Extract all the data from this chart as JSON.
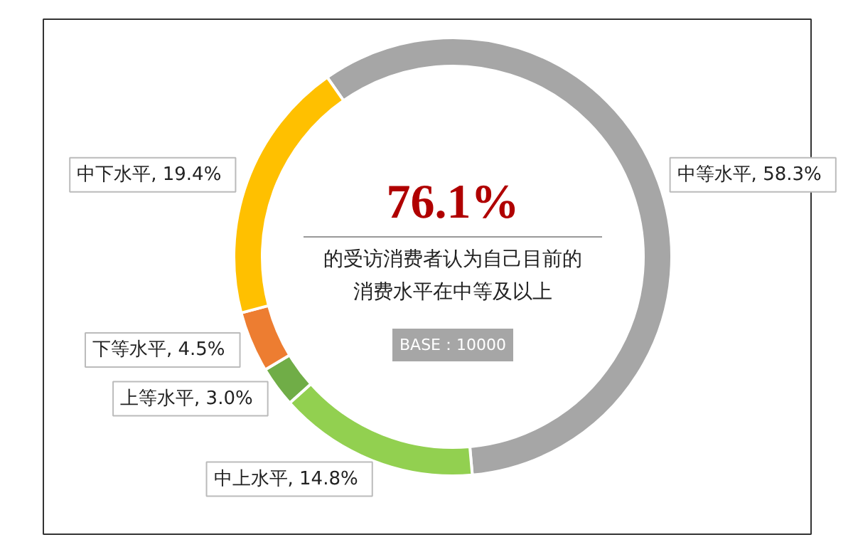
{
  "chart_data": {
    "type": "donut",
    "categories": [
      "中等水平",
      "中上水平",
      "上等水平",
      "下等水平",
      "中下水平"
    ],
    "values": [
      58.3,
      14.8,
      3.0,
      4.5,
      19.4
    ],
    "colors": [
      "#a6a6a6",
      "#92d050",
      "#70ad47",
      "#ed7d31",
      "#ffc000"
    ],
    "value_labels": [
      ", 58.3%",
      ", 14.8%",
      ", 3.0%",
      ", 4.5%",
      ", 19.4%"
    ],
    "annotations": [
      "76.1%",
      "的受访消费者认为自己目前的",
      "消费水平在中等及以上",
      "BASE：10000"
    ]
  }
}
